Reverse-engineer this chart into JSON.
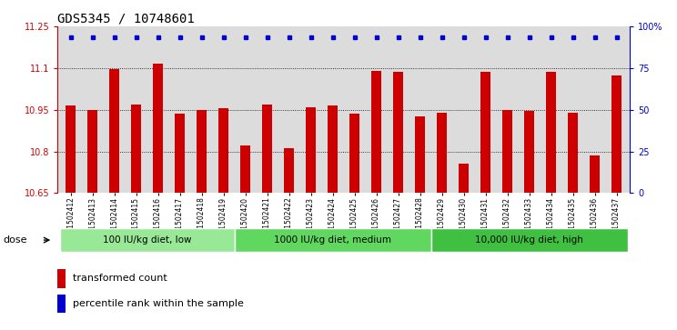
{
  "title": "GDS5345 / 10748601",
  "samples": [
    "GSM1502412",
    "GSM1502413",
    "GSM1502414",
    "GSM1502415",
    "GSM1502416",
    "GSM1502417",
    "GSM1502418",
    "GSM1502419",
    "GSM1502420",
    "GSM1502421",
    "GSM1502422",
    "GSM1502423",
    "GSM1502424",
    "GSM1502425",
    "GSM1502426",
    "GSM1502427",
    "GSM1502428",
    "GSM1502429",
    "GSM1502430",
    "GSM1502431",
    "GSM1502432",
    "GSM1502433",
    "GSM1502434",
    "GSM1502435",
    "GSM1502436",
    "GSM1502437"
  ],
  "bar_values": [
    10.965,
    10.95,
    11.095,
    10.968,
    11.115,
    10.935,
    10.95,
    10.955,
    10.82,
    10.968,
    10.81,
    10.96,
    10.965,
    10.935,
    11.09,
    11.085,
    10.925,
    10.94,
    10.755,
    11.085,
    10.95,
    10.945,
    11.085,
    10.94,
    10.785,
    11.075
  ],
  "groups": [
    {
      "label": "100 IU/kg diet, low",
      "start": 0,
      "end": 8,
      "color": "#98E898"
    },
    {
      "label": "1000 IU/kg diet, medium",
      "start": 8,
      "end": 17,
      "color": "#60D860"
    },
    {
      "label": "10,000 IU/kg diet, high",
      "start": 17,
      "end": 26,
      "color": "#40C040"
    }
  ],
  "ylim": [
    10.65,
    11.25
  ],
  "yticks": [
    10.65,
    10.8,
    10.95,
    11.1,
    11.25
  ],
  "ytick_labels": [
    "10.65",
    "10.8",
    "10.95",
    "11.1",
    "11.25"
  ],
  "right_yticks": [
    0,
    25,
    50,
    75,
    100
  ],
  "right_ytick_labels": [
    "0",
    "25",
    "50",
    "75",
    "100%"
  ],
  "bar_color": "#CC0000",
  "dot_color": "#0000CC",
  "bg_color": "#DCDCDC",
  "title_fontsize": 10,
  "tick_fontsize": 7,
  "label_fontsize": 7.5
}
